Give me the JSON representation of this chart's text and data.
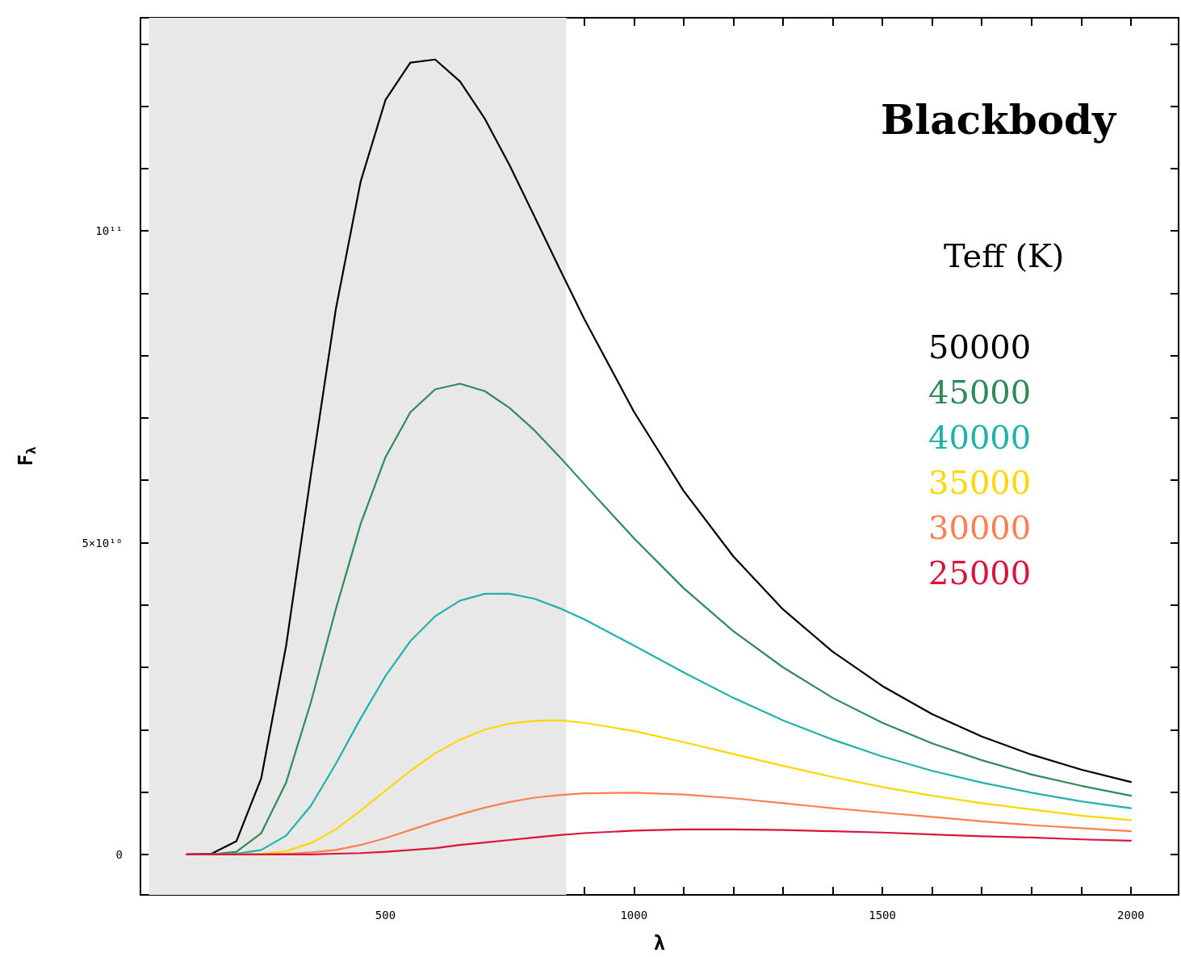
{
  "chart_data": {
    "type": "line",
    "title": "Blackbody",
    "legend_title": "Teff (K)",
    "xlabel": "λ",
    "ylabel": "F$_{λ}$",
    "x": [
      100,
      150,
      200,
      250,
      300,
      350,
      400,
      450,
      500,
      550,
      600,
      650,
      700,
      750,
      800,
      850,
      900,
      1000,
      1100,
      1200,
      1300,
      1400,
      1500,
      1600,
      1700,
      1800,
      1900,
      2000
    ],
    "series": [
      {
        "name": "50000",
        "color": "#000000",
        "values": [
          0,
          100000000.0,
          2100000000.0,
          12200000000.0,
          33400000000.0,
          60900000000.0,
          87400000000.0,
          107900000000.0,
          121000000000.0,
          127000000000.0,
          127500000000.0,
          124000000000.0,
          118000000000.0,
          110500000000.0,
          102300000000.0,
          94000000000.0,
          85900000000.0,
          71000000000.0,
          58300000000.0,
          47800000000.0,
          39300000000.0,
          32500000000.0,
          27000000000.0,
          22500000000.0,
          18900000000.0,
          16000000000.0,
          13600000000.0,
          11600000000.0
        ]
      },
      {
        "name": "45000",
        "color": "#2e8b57",
        "values": [
          0,
          0,
          400000000.0,
          3400000000.0,
          11500000000.0,
          24400000000.0,
          39300000000.0,
          53000000000.0,
          63700000000.0,
          70900000000.0,
          74600000000.0,
          75500000000.0,
          74300000000.0,
          71600000000.0,
          68000000000.0,
          63800000000.0,
          59400000000.0,
          50700000000.0,
          42700000000.0,
          35800000000.0,
          30000000000.0,
          25100000000.0,
          21100000000.0,
          17800000000.0,
          15100000000.0,
          12800000000.0,
          11000000000.0,
          9400000000.0
        ]
      },
      {
        "name": "40000",
        "color": "#20b2aa",
        "values": [
          0,
          0,
          100000000.0,
          700000000.0,
          3000000000.0,
          7800000000.0,
          14500000000.0,
          21800000000.0,
          28600000000.0,
          34200000000.0,
          38200000000.0,
          40700000000.0,
          41800000000.0,
          41800000000.0,
          41000000000.0,
          39500000000.0,
          37700000000.0,
          33500000000.0,
          29200000000.0,
          25100000000.0,
          21500000000.0,
          18400000000.0,
          15700000000.0,
          13400000000.0,
          11500000000.0,
          9900000000.0,
          8500000000.0,
          7400000000.0
        ]
      },
      {
        "name": "35000",
        "color": "#ffd700",
        "values": [
          null,
          null,
          0,
          100000000.0,
          500000000.0,
          1800000000.0,
          4000000000.0,
          7000000000.0,
          10200000000.0,
          13400000000.0,
          16200000000.0,
          18400000000.0,
          20000000000.0,
          21000000000.0,
          21400000000.0,
          21500000000.0,
          21100000000.0,
          19800000000.0,
          18000000000.0,
          16100000000.0,
          14200000000.0,
          12400000000.0,
          10800000000.0,
          9400000000.0,
          8200000000.0,
          7200000000.0,
          6200000000.0,
          5500000000.0
        ]
      },
      {
        "name": "30000",
        "color": "#ff7f50",
        "values": [
          0,
          0,
          0,
          0,
          100000000.0,
          300000000.0,
          700000000.0,
          1500000000.0,
          2600000000.0,
          3900000000.0,
          5200000000.0,
          6400000000.0,
          7500000000.0,
          8400000000.0,
          9100000000.0,
          9500000000.0,
          9800000000.0,
          9900000000.0,
          9600000000.0,
          9000000000.0,
          8200000000.0,
          7400000000.0,
          6700000000.0,
          6000000000.0,
          5300000000.0,
          4700000000.0,
          4200000000.0,
          3700000000.0
        ]
      },
      {
        "name": "25000",
        "color": "#dc143c",
        "values": [
          0,
          0,
          0,
          0,
          0,
          0,
          100000000.0,
          200000000.0,
          400000000.0,
          700000000.0,
          1000000000.0,
          1500000000.0,
          1900000000.0,
          2300000000.0,
          2700000000.0,
          3100000000.0,
          3400000000.0,
          3800000000.0,
          4000000000.0,
          4000000000.0,
          3900000000.0,
          3700000000.0,
          3500000000.0,
          3200000000.0,
          2900000000.0,
          2700000000.0,
          2400000000.0,
          2200000000.0
        ]
      }
    ],
    "xlim": [
      7,
      2096
    ],
    "xticks": [
      {
        "value": 100,
        "label": null
      },
      {
        "value": 200,
        "label": null
      },
      {
        "value": 300,
        "label": null
      },
      {
        "value": 400,
        "label": null
      },
      500,
      {
        "value": 600,
        "label": null
      },
      {
        "value": 700,
        "label": null
      },
      {
        "value": 800,
        "label": null
      },
      {
        "value": 900,
        "label": null
      },
      1000,
      {
        "value": 1100,
        "label": null
      },
      {
        "value": 1200,
        "label": null
      },
      {
        "value": 1300,
        "label": null
      },
      {
        "value": 1400,
        "label": null
      },
      1500,
      {
        "value": 1600,
        "label": null
      },
      {
        "value": 1700,
        "label": null
      },
      {
        "value": 1800,
        "label": null
      },
      {
        "value": 1900,
        "label": null
      },
      2000
    ],
    "ylim": [
      -6500000000.0,
      134200000000.0
    ],
    "yticks": [
      0,
      {
        "value": 10000000000.0,
        "label": null
      },
      {
        "value": 20000000000.0,
        "label": null
      },
      {
        "value": 30000000000.0,
        "label": null
      },
      {
        "value": 40000000000.0,
        "label": null
      },
      {
        "value": 50000000000.0,
        "label": "5×10¹⁰"
      },
      {
        "value": 60000000000.0,
        "label": null
      },
      {
        "value": 70000000000.0,
        "label": null
      },
      {
        "value": 80000000000.0,
        "label": null
      },
      {
        "value": 90000000000.0,
        "label": null
      },
      {
        "value": 100000000000.0,
        "label": "10¹¹"
      },
      {
        "value": 110000000000.0,
        "label": null
      },
      {
        "value": 120000000000.0,
        "label": null
      },
      {
        "value": 130000000000.0,
        "label": null
      }
    ],
    "bands": [
      {
        "axis": "x",
        "from": 24,
        "to": 864,
        "color": "#e8e8e8"
      }
    ],
    "legend": "right",
    "marker": "none",
    "line_style": "solid"
  }
}
